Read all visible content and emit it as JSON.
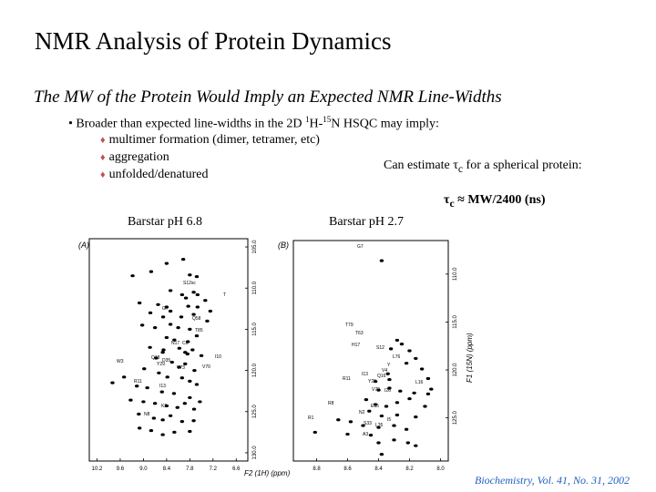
{
  "title": "NMR Analysis of Protein Dynamics",
  "subtitle": "The MW of the Protein Would Imply an Expected NMR Line-Widths",
  "bullet": {
    "marker": "•",
    "prefix": "Broader than expected line-widths in the 2D ",
    "iso1_mass": "1",
    "iso1_el": "H-",
    "iso2_mass": "15",
    "iso2_el": "N HSQC may imply:"
  },
  "sub_items": [
    {
      "marker": "♦",
      "text": "multimer formation (dimer, tetramer, etc)"
    },
    {
      "marker": "♦",
      "text": "aggregation"
    },
    {
      "marker": "♦",
      "text": "unfolded/denatured"
    }
  ],
  "estimate_text": {
    "prefix": "Can estimate ",
    "tau": "τ",
    "sub": "c",
    "suffix": " for a spherical protein:"
  },
  "formula": {
    "tau": "τ",
    "sub": "c",
    "rest": " ≈ MW/2400 (ns)"
  },
  "panel_a": {
    "caption": "Barstar pH 6.8",
    "tag": "(A)",
    "x_ticks": [
      "10.2",
      "9.6",
      "9.0",
      "8.4",
      "7.8",
      "7.2",
      "6.6"
    ],
    "y_ticks": [
      "105.0",
      "110.0",
      "115.0",
      "120.0",
      "125.0",
      "130.0"
    ],
    "peak_labels": [
      "S12sc",
      "G7",
      "T",
      "Q58",
      "T85",
      "N17",
      "C6",
      "I10",
      "Q18",
      "D35",
      "V70",
      "V73",
      "Y29",
      "W3",
      "R11",
      "N8",
      "I13",
      "K2"
    ],
    "peaks": [
      [
        9.28,
        108.5
      ],
      [
        8.8,
        108.0
      ],
      [
        8.4,
        107.0
      ],
      [
        7.97,
        106.5
      ],
      [
        7.8,
        108.4
      ],
      [
        7.62,
        108.6
      ],
      [
        7.7,
        110.5
      ],
      [
        7.6,
        110.8
      ],
      [
        7.4,
        111.5
      ],
      [
        8.0,
        110.8
      ],
      [
        7.9,
        111.2
      ],
      [
        8.3,
        110.3
      ],
      [
        9.1,
        111.8
      ],
      [
        8.62,
        112.0
      ],
      [
        8.4,
        112.3
      ],
      [
        8.3,
        112.8
      ],
      [
        7.84,
        112.2
      ],
      [
        7.6,
        112.3
      ],
      [
        7.27,
        112.8
      ],
      [
        8.82,
        113.0
      ],
      [
        8.49,
        113.5
      ],
      [
        8.02,
        113.5
      ],
      [
        7.7,
        113.2
      ],
      [
        7.35,
        114.0
      ],
      [
        9.03,
        114.5
      ],
      [
        8.7,
        114.8
      ],
      [
        8.3,
        114.4
      ],
      [
        8.1,
        114.8
      ],
      [
        7.8,
        115.0
      ],
      [
        7.62,
        115.8
      ],
      [
        8.4,
        116.0
      ],
      [
        8.2,
        116.3
      ],
      [
        7.85,
        116.5
      ],
      [
        8.83,
        117.2
      ],
      [
        8.48,
        117.5
      ],
      [
        8.5,
        117.8
      ],
      [
        8.07,
        117.3
      ],
      [
        7.92,
        117.8
      ],
      [
        7.86,
        118.0
      ],
      [
        7.73,
        117.5
      ],
      [
        7.5,
        118.2
      ],
      [
        8.67,
        118.5
      ],
      [
        8.26,
        119.0
      ],
      [
        8.08,
        119.6
      ],
      [
        7.92,
        119.2
      ],
      [
        7.68,
        120.0
      ],
      [
        8.98,
        119.8
      ],
      [
        8.6,
        120.3
      ],
      [
        8.38,
        120.8
      ],
      [
        8.0,
        120.9
      ],
      [
        7.8,
        121.3
      ],
      [
        7.62,
        121.7
      ],
      [
        9.8,
        121.5
      ],
      [
        9.5,
        120.8
      ],
      [
        9.17,
        121.9
      ],
      [
        8.9,
        122.1
      ],
      [
        8.52,
        122.6
      ],
      [
        8.21,
        122.8
      ],
      [
        7.8,
        123.3
      ],
      [
        7.54,
        123.8
      ],
      [
        9.33,
        123.6
      ],
      [
        9.0,
        123.8
      ],
      [
        8.7,
        124.0
      ],
      [
        8.4,
        124.3
      ],
      [
        8.12,
        124.5
      ],
      [
        7.93,
        124.0
      ],
      [
        7.69,
        124.7
      ],
      [
        9.12,
        125.3
      ],
      [
        8.73,
        125.8
      ],
      [
        8.5,
        126.0
      ],
      [
        8.3,
        125.5
      ],
      [
        8.0,
        126.2
      ],
      [
        7.7,
        126.1
      ],
      [
        9.1,
        127.0
      ],
      [
        8.8,
        127.3
      ],
      [
        8.5,
        127.8
      ],
      [
        8.2,
        127.5
      ],
      [
        7.8,
        127.4
      ]
    ]
  },
  "panel_b": {
    "caption": "Barstar pH 2.7",
    "tag": "(B)",
    "x_ticks": [
      "8.8",
      "8.6",
      "8.4",
      "8.2",
      "8.0"
    ],
    "y_ticks": [
      "110.0",
      "115.0",
      "120.0",
      "125.0"
    ],
    "x_axis_title": "F2 (1H) (ppm)",
    "y_axis_title": "F1 (15N) (ppm)",
    "peak_labels": [
      "G7",
      "T79",
      "T63",
      "H17",
      "S12",
      "L76",
      "Y",
      "V4",
      "I13",
      "R11",
      "Q16",
      "Y29",
      "V70",
      "I26",
      "L16",
      "R8",
      "N2",
      "E35",
      "R1",
      "S33",
      "I5",
      "L35",
      "A3"
    ],
    "peaks": [
      [
        8.38,
        108.6
      ],
      [
        8.28,
        116.9
      ],
      [
        8.25,
        117.3
      ],
      [
        8.32,
        117.8
      ],
      [
        8.2,
        118.0
      ],
      [
        8.16,
        118.8
      ],
      [
        8.22,
        119.3
      ],
      [
        8.12,
        119.9
      ],
      [
        8.34,
        120.4
      ],
      [
        8.08,
        120.9
      ],
      [
        8.33,
        121.0
      ],
      [
        8.42,
        121.2
      ],
      [
        8.33,
        121.9
      ],
      [
        8.06,
        122.0
      ],
      [
        8.4,
        122.1
      ],
      [
        8.26,
        122.2
      ],
      [
        8.17,
        122.4
      ],
      [
        8.08,
        122.5
      ],
      [
        8.48,
        123.1
      ],
      [
        8.42,
        123.6
      ],
      [
        8.35,
        123.8
      ],
      [
        8.28,
        123.4
      ],
      [
        8.2,
        123.0
      ],
      [
        8.1,
        123.8
      ],
      [
        8.46,
        124.3
      ],
      [
        8.38,
        124.8
      ],
      [
        8.28,
        124.7
      ],
      [
        8.16,
        124.9
      ],
      [
        8.66,
        125.2
      ],
      [
        8.58,
        125.4
      ],
      [
        8.5,
        125.8
      ],
      [
        8.4,
        126.0
      ],
      [
        8.3,
        125.8
      ],
      [
        8.22,
        126.2
      ],
      [
        8.81,
        126.5
      ],
      [
        8.6,
        126.7
      ],
      [
        8.45,
        126.8
      ],
      [
        8.3,
        127.3
      ],
      [
        8.4,
        127.6
      ],
      [
        8.21,
        127.6
      ],
      [
        8.16,
        127.9
      ],
      [
        8.38,
        128.8
      ]
    ]
  },
  "citation": "Biochemistry, Vol. 41, No. 31, 2002",
  "colors": {
    "text": "#000000",
    "diamond": "#c0504d",
    "citation": "#1f5fbf",
    "background": "#ffffff"
  }
}
